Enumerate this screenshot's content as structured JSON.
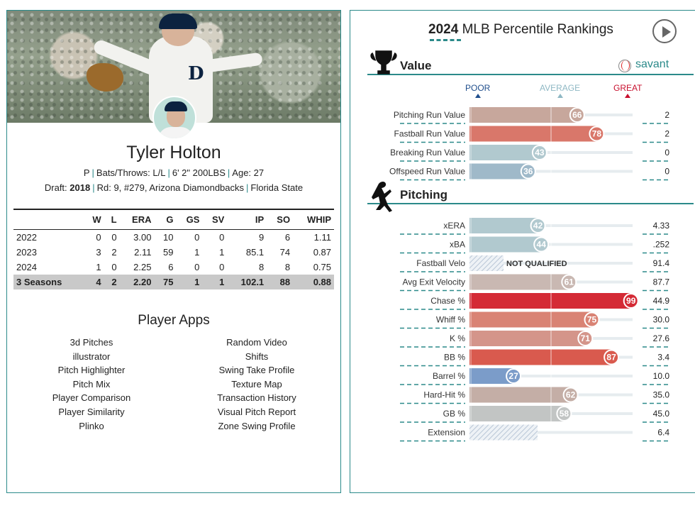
{
  "player": {
    "name": "Tyler Holton",
    "position": "P",
    "bats_throws": "Bats/Throws: L/L",
    "height_weight": "6' 2\" 200LBS",
    "age": "Age: 27",
    "draft_label": "Draft:",
    "draft_year": "2018",
    "draft_detail": "Rd: 9, #279, Arizona Diamondbacks",
    "school": "Florida State"
  },
  "stats_table": {
    "headers": [
      "",
      "W",
      "L",
      "ERA",
      "G",
      "GS",
      "SV",
      "IP",
      "SO",
      "WHIP"
    ],
    "rows": [
      [
        "2022",
        "0",
        "0",
        "3.00",
        "10",
        "0",
        "0",
        "9",
        "6",
        "1.11"
      ],
      [
        "2023",
        "3",
        "2",
        "2.11",
        "59",
        "1",
        "1",
        "85.1",
        "74",
        "0.87"
      ],
      [
        "2024",
        "1",
        "0",
        "2.25",
        "6",
        "0",
        "0",
        "8",
        "8",
        "0.75"
      ],
      [
        "3 Seasons",
        "4",
        "2",
        "2.20",
        "75",
        "1",
        "1",
        "102.1",
        "88",
        "0.88"
      ]
    ]
  },
  "player_apps": {
    "title": "Player Apps",
    "left": [
      "3d Pitches",
      "illustrator",
      "Pitch Highlighter",
      "Pitch Mix",
      "Player Comparison",
      "Player Similarity",
      "Plinko"
    ],
    "right": [
      "Random Video",
      "Shifts",
      "Swing Take Profile",
      "Texture Map",
      "Transaction History",
      "Visual Pitch Report",
      "Zone Swing Profile"
    ]
  },
  "rankings": {
    "year": "2024",
    "title": "MLB Percentile Rankings",
    "brand": "savant",
    "legend": {
      "poor": "POOR",
      "average": "AVERAGE",
      "great": "GREAT"
    },
    "legend_colors": {
      "poor": "#1f4e8c",
      "average": "#8fb8c4",
      "great": "#c8102e"
    },
    "sections": [
      {
        "name": "Value",
        "icon": "trophy-icon",
        "rows": [
          {
            "label": "Pitching Run Value",
            "percentile": 66,
            "value": "2",
            "color": "#c7a79c"
          },
          {
            "label": "Fastball Run Value",
            "percentile": 78,
            "value": "2",
            "color": "#d9776a"
          },
          {
            "label": "Breaking Run Value",
            "percentile": 43,
            "value": "0",
            "color": "#b1c9cf"
          },
          {
            "label": "Offspeed Run Value",
            "percentile": 36,
            "value": "0",
            "color": "#9fb9c9"
          }
        ]
      },
      {
        "name": "Pitching",
        "icon": "pitcher-icon",
        "rows": [
          {
            "label": "xERA",
            "percentile": 42,
            "value": "4.33",
            "color": "#b1c9cf"
          },
          {
            "label": "xBA",
            "percentile": 44,
            "value": ".252",
            "color": "#b1c9cf"
          },
          {
            "label": "Fastball Velo",
            "percentile": null,
            "value": "91.4",
            "note": "NOT QUALIFIED"
          },
          {
            "label": "Avg Exit Velocity",
            "percentile": 61,
            "value": "87.7",
            "color": "#c9b8b2"
          },
          {
            "label": "Chase %",
            "percentile": 99,
            "value": "44.9",
            "color": "#d42a35"
          },
          {
            "label": "Whiff %",
            "percentile": 75,
            "value": "30.0",
            "color": "#d98374"
          },
          {
            "label": "K %",
            "percentile": 71,
            "value": "27.6",
            "color": "#d4958a"
          },
          {
            "label": "BB %",
            "percentile": 87,
            "value": "3.4",
            "color": "#d95a4e"
          },
          {
            "label": "Barrel %",
            "percentile": 27,
            "value": "10.0",
            "color": "#7b9cc9"
          },
          {
            "label": "Hard-Hit %",
            "percentile": 62,
            "value": "35.0",
            "color": "#c4aea6"
          },
          {
            "label": "GB %",
            "percentile": 58,
            "value": "45.0",
            "color": "#c2c5c4"
          },
          {
            "label": "Extension",
            "percentile": null,
            "value": "6.4",
            "note": ""
          }
        ]
      }
    ]
  }
}
